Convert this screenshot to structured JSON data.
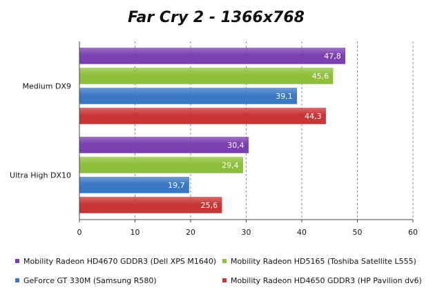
{
  "chart_data": {
    "type": "bar",
    "orientation": "horizontal",
    "title": "Far Cry 2 - 1366x768",
    "categories": [
      "Medium DX9",
      "Ultra High DX10"
    ],
    "series": [
      {
        "name": "Mobility Radeon HD4670 GDDR3 (Dell XPS M1640)",
        "color": "#7b3fb0",
        "values": [
          47.8,
          30.4
        ],
        "labels": [
          "47,8",
          "30,4"
        ]
      },
      {
        "name": "Mobility Radeon HD5165 (Toshiba Satellite L555)",
        "color": "#8cbf3a",
        "values": [
          45.6,
          29.4
        ],
        "labels": [
          "45,6",
          "29,4"
        ]
      },
      {
        "name": "GeForce GT 330M (Samsung R580)",
        "color": "#3b78c4",
        "values": [
          39.1,
          19.7
        ],
        "labels": [
          "39,1",
          "19,7"
        ]
      },
      {
        "name": "Mobility Radeon HD4650 GDDR3 (HP Pavilion dv6)",
        "color": "#c93535",
        "values": [
          44.3,
          25.6
        ],
        "labels": [
          "44,3",
          "25,6"
        ]
      }
    ],
    "xlim": [
      0,
      60
    ],
    "xticks": [
      "0",
      "10",
      "20",
      "30",
      "40",
      "50",
      "60"
    ],
    "grid": "dashed-vertical",
    "legend": "bottom"
  }
}
